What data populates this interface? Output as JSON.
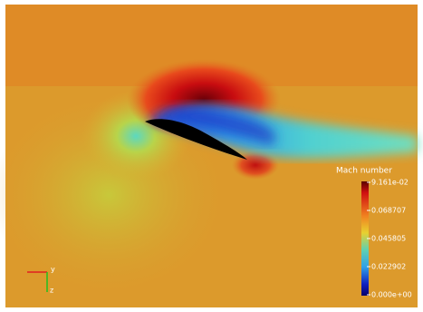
{
  "colorbar": {
    "title": "Mach number",
    "labels": [
      "9.161e-02",
      "0.068707",
      "0.045805",
      "0.022902",
      "0.000e+00"
    ]
  },
  "axes_triad": {
    "labels": [
      "y",
      "z"
    ]
  }
}
